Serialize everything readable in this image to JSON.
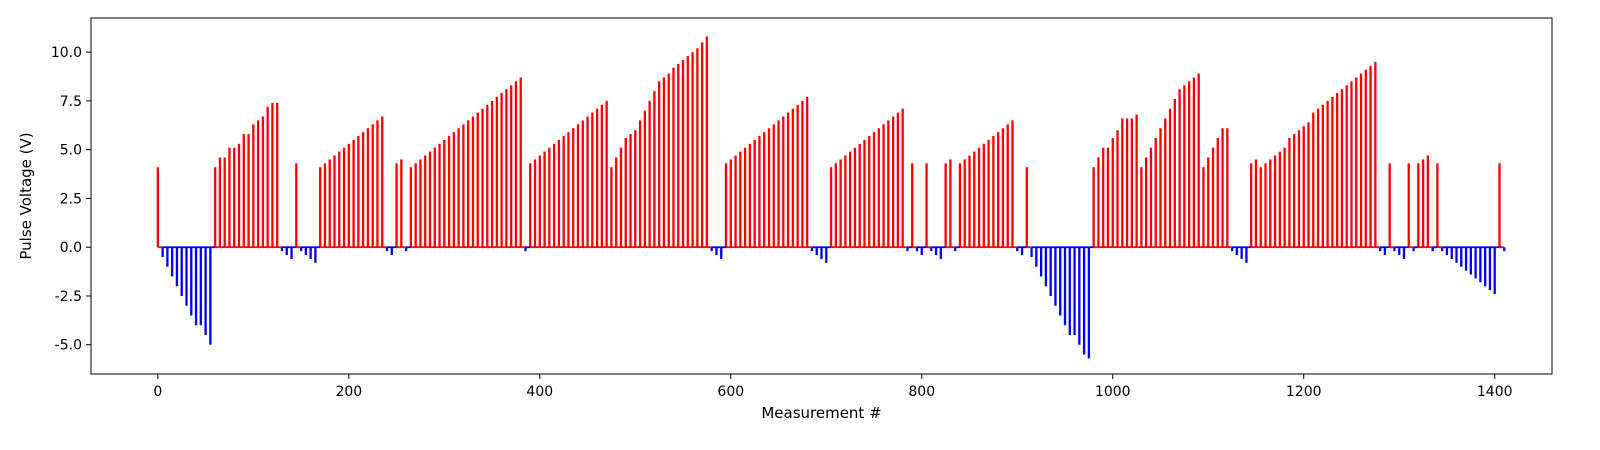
{
  "chart_data": {
    "type": "bar",
    "title": "",
    "xlabel": "Measurement #",
    "ylabel": "Pulse Voltage (V)",
    "xlim": [
      -70,
      1460
    ],
    "ylim": [
      -6.5,
      11.75
    ],
    "x_ticks": [
      0,
      200,
      400,
      600,
      800,
      1000,
      1200,
      1400
    ],
    "y_ticks": [
      -5.0,
      -2.5,
      0.0,
      2.5,
      5.0,
      7.5,
      10.0
    ],
    "grid": false,
    "legend": "none",
    "colors": {
      "positive": "#ff0000",
      "negative": "#0000ff"
    },
    "series": [
      {
        "color": "#ff0000",
        "points": [
          [
            0,
            4.1
          ],
          [
            60,
            4.1
          ],
          [
            65,
            4.6
          ],
          [
            70,
            4.6
          ],
          [
            75,
            5.1
          ],
          [
            80,
            5.1
          ],
          [
            85,
            5.3
          ],
          [
            90,
            5.8
          ],
          [
            95,
            5.8
          ],
          [
            100,
            6.3
          ],
          [
            105,
            6.5
          ],
          [
            110,
            6.7
          ],
          [
            115,
            7.2
          ],
          [
            120,
            7.4
          ],
          [
            125,
            7.4
          ],
          [
            145,
            4.3
          ],
          [
            170,
            4.1
          ],
          [
            175,
            4.3
          ],
          [
            180,
            4.5
          ],
          [
            185,
            4.7
          ],
          [
            190,
            4.9
          ],
          [
            195,
            5.1
          ],
          [
            200,
            5.3
          ],
          [
            205,
            5.5
          ],
          [
            210,
            5.7
          ],
          [
            215,
            5.9
          ],
          [
            220,
            6.1
          ],
          [
            225,
            6.3
          ],
          [
            230,
            6.5
          ],
          [
            235,
            6.7
          ],
          [
            250,
            4.3
          ],
          [
            255,
            4.5
          ],
          [
            265,
            4.1
          ],
          [
            270,
            4.3
          ],
          [
            275,
            4.5
          ],
          [
            280,
            4.7
          ],
          [
            285,
            4.9
          ],
          [
            290,
            5.1
          ],
          [
            295,
            5.3
          ],
          [
            300,
            5.5
          ],
          [
            305,
            5.7
          ],
          [
            310,
            5.9
          ],
          [
            315,
            6.1
          ],
          [
            320,
            6.3
          ],
          [
            325,
            6.5
          ],
          [
            330,
            6.7
          ],
          [
            335,
            6.9
          ],
          [
            340,
            7.1
          ],
          [
            345,
            7.3
          ],
          [
            350,
            7.5
          ],
          [
            355,
            7.7
          ],
          [
            360,
            7.9
          ],
          [
            365,
            8.1
          ],
          [
            370,
            8.3
          ],
          [
            375,
            8.5
          ],
          [
            380,
            8.7
          ],
          [
            390,
            4.3
          ],
          [
            395,
            4.5
          ],
          [
            400,
            4.7
          ],
          [
            405,
            4.9
          ],
          [
            410,
            5.1
          ],
          [
            415,
            5.3
          ],
          [
            420,
            5.5
          ],
          [
            425,
            5.7
          ],
          [
            430,
            5.9
          ],
          [
            435,
            6.1
          ],
          [
            440,
            6.3
          ],
          [
            445,
            6.5
          ],
          [
            450,
            6.7
          ],
          [
            455,
            6.9
          ],
          [
            460,
            7.1
          ],
          [
            465,
            7.3
          ],
          [
            470,
            7.5
          ],
          [
            475,
            4.1
          ],
          [
            480,
            4.6
          ],
          [
            485,
            5.1
          ],
          [
            490,
            5.6
          ],
          [
            495,
            5.8
          ],
          [
            500,
            6.0
          ],
          [
            505,
            6.5
          ],
          [
            510,
            7.0
          ],
          [
            515,
            7.5
          ],
          [
            520,
            8.0
          ],
          [
            525,
            8.5
          ],
          [
            530,
            8.7
          ],
          [
            535,
            8.9
          ],
          [
            540,
            9.2
          ],
          [
            545,
            9.4
          ],
          [
            550,
            9.6
          ],
          [
            555,
            9.8
          ],
          [
            560,
            10.0
          ],
          [
            565,
            10.2
          ],
          [
            570,
            10.5
          ],
          [
            575,
            10.8
          ],
          [
            595,
            4.3
          ],
          [
            600,
            4.5
          ],
          [
            605,
            4.7
          ],
          [
            610,
            4.9
          ],
          [
            615,
            5.1
          ],
          [
            620,
            5.3
          ],
          [
            625,
            5.5
          ],
          [
            630,
            5.7
          ],
          [
            635,
            5.9
          ],
          [
            640,
            6.1
          ],
          [
            645,
            6.3
          ],
          [
            650,
            6.5
          ],
          [
            655,
            6.7
          ],
          [
            660,
            6.9
          ],
          [
            665,
            7.1
          ],
          [
            670,
            7.3
          ],
          [
            675,
            7.5
          ],
          [
            680,
            7.7
          ],
          [
            705,
            4.1
          ],
          [
            710,
            4.3
          ],
          [
            715,
            4.5
          ],
          [
            720,
            4.7
          ],
          [
            725,
            4.9
          ],
          [
            730,
            5.1
          ],
          [
            735,
            5.3
          ],
          [
            740,
            5.5
          ],
          [
            745,
            5.7
          ],
          [
            750,
            5.9
          ],
          [
            755,
            6.1
          ],
          [
            760,
            6.3
          ],
          [
            765,
            6.5
          ],
          [
            770,
            6.7
          ],
          [
            775,
            6.9
          ],
          [
            780,
            7.1
          ],
          [
            790,
            4.3
          ],
          [
            805,
            4.3
          ],
          [
            825,
            4.3
          ],
          [
            830,
            4.5
          ],
          [
            840,
            4.3
          ],
          [
            845,
            4.5
          ],
          [
            850,
            4.7
          ],
          [
            855,
            4.9
          ],
          [
            860,
            5.1
          ],
          [
            865,
            5.3
          ],
          [
            870,
            5.5
          ],
          [
            875,
            5.7
          ],
          [
            880,
            5.9
          ],
          [
            885,
            6.1
          ],
          [
            890,
            6.3
          ],
          [
            895,
            6.5
          ],
          [
            910,
            4.1
          ],
          [
            980,
            4.1
          ],
          [
            985,
            4.6
          ],
          [
            990,
            5.1
          ],
          [
            995,
            5.1
          ],
          [
            1000,
            5.6
          ],
          [
            1005,
            6.0
          ],
          [
            1010,
            6.6
          ],
          [
            1015,
            6.6
          ],
          [
            1020,
            6.6
          ],
          [
            1025,
            6.8
          ],
          [
            1030,
            4.1
          ],
          [
            1035,
            4.6
          ],
          [
            1040,
            5.1
          ],
          [
            1045,
            5.6
          ],
          [
            1050,
            6.1
          ],
          [
            1055,
            6.6
          ],
          [
            1060,
            7.1
          ],
          [
            1065,
            7.6
          ],
          [
            1070,
            8.1
          ],
          [
            1075,
            8.3
          ],
          [
            1080,
            8.5
          ],
          [
            1085,
            8.7
          ],
          [
            1090,
            8.9
          ],
          [
            1095,
            4.1
          ],
          [
            1100,
            4.6
          ],
          [
            1105,
            5.1
          ],
          [
            1110,
            5.6
          ],
          [
            1115,
            6.1
          ],
          [
            1120,
            6.1
          ],
          [
            1145,
            4.3
          ],
          [
            1150,
            4.5
          ],
          [
            1155,
            4.1
          ],
          [
            1160,
            4.3
          ],
          [
            1165,
            4.5
          ],
          [
            1170,
            4.7
          ],
          [
            1175,
            4.9
          ],
          [
            1180,
            5.1
          ],
          [
            1185,
            5.6
          ],
          [
            1190,
            5.8
          ],
          [
            1195,
            6.0
          ],
          [
            1200,
            6.2
          ],
          [
            1205,
            6.4
          ],
          [
            1210,
            6.9
          ],
          [
            1215,
            7.1
          ],
          [
            1220,
            7.3
          ],
          [
            1225,
            7.5
          ],
          [
            1230,
            7.7
          ],
          [
            1235,
            7.9
          ],
          [
            1240,
            8.1
          ],
          [
            1245,
            8.3
          ],
          [
            1250,
            8.5
          ],
          [
            1255,
            8.7
          ],
          [
            1260,
            8.9
          ],
          [
            1265,
            9.1
          ],
          [
            1270,
            9.3
          ],
          [
            1275,
            9.5
          ],
          [
            1290,
            4.3
          ],
          [
            1310,
            4.3
          ],
          [
            1320,
            4.3
          ],
          [
            1325,
            4.5
          ],
          [
            1330,
            4.7
          ],
          [
            1340,
            4.3
          ],
          [
            1405,
            4.3
          ]
        ]
      },
      {
        "color": "#0000ff",
        "points": [
          [
            5,
            -0.5
          ],
          [
            10,
            -1.0
          ],
          [
            15,
            -1.5
          ],
          [
            20,
            -2.0
          ],
          [
            25,
            -2.5
          ],
          [
            30,
            -3.0
          ],
          [
            35,
            -3.5
          ],
          [
            40,
            -4.0
          ],
          [
            45,
            -4.0
          ],
          [
            50,
            -4.5
          ],
          [
            55,
            -5.0
          ],
          [
            130,
            -0.2
          ],
          [
            135,
            -0.4
          ],
          [
            140,
            -0.6
          ],
          [
            150,
            -0.2
          ],
          [
            155,
            -0.4
          ],
          [
            160,
            -0.6
          ],
          [
            165,
            -0.8
          ],
          [
            240,
            -0.2
          ],
          [
            245,
            -0.4
          ],
          [
            260,
            -0.2
          ],
          [
            385,
            -0.2
          ],
          [
            580,
            -0.2
          ],
          [
            585,
            -0.4
          ],
          [
            590,
            -0.6
          ],
          [
            685,
            -0.2
          ],
          [
            690,
            -0.4
          ],
          [
            695,
            -0.6
          ],
          [
            700,
            -0.8
          ],
          [
            785,
            -0.2
          ],
          [
            795,
            -0.2
          ],
          [
            800,
            -0.4
          ],
          [
            810,
            -0.2
          ],
          [
            815,
            -0.4
          ],
          [
            820,
            -0.6
          ],
          [
            835,
            -0.2
          ],
          [
            900,
            -0.2
          ],
          [
            905,
            -0.4
          ],
          [
            915,
            -0.5
          ],
          [
            920,
            -1.0
          ],
          [
            925,
            -1.5
          ],
          [
            930,
            -2.0
          ],
          [
            935,
            -2.5
          ],
          [
            940,
            -3.0
          ],
          [
            945,
            -3.5
          ],
          [
            950,
            -4.0
          ],
          [
            955,
            -4.5
          ],
          [
            960,
            -4.5
          ],
          [
            965,
            -5.0
          ],
          [
            970,
            -5.5
          ],
          [
            975,
            -5.7
          ],
          [
            1125,
            -0.2
          ],
          [
            1130,
            -0.4
          ],
          [
            1135,
            -0.6
          ],
          [
            1140,
            -0.8
          ],
          [
            1280,
            -0.2
          ],
          [
            1285,
            -0.4
          ],
          [
            1295,
            -0.2
          ],
          [
            1300,
            -0.4
          ],
          [
            1305,
            -0.6
          ],
          [
            1315,
            -0.2
          ],
          [
            1335,
            -0.2
          ],
          [
            1345,
            -0.2
          ],
          [
            1350,
            -0.4
          ],
          [
            1355,
            -0.6
          ],
          [
            1360,
            -0.8
          ],
          [
            1365,
            -1.0
          ],
          [
            1370,
            -1.2
          ],
          [
            1375,
            -1.4
          ],
          [
            1380,
            -1.6
          ],
          [
            1385,
            -1.8
          ],
          [
            1390,
            -2.0
          ],
          [
            1395,
            -2.2
          ],
          [
            1400,
            -2.4
          ],
          [
            1410,
            -0.2
          ]
        ]
      }
    ]
  }
}
